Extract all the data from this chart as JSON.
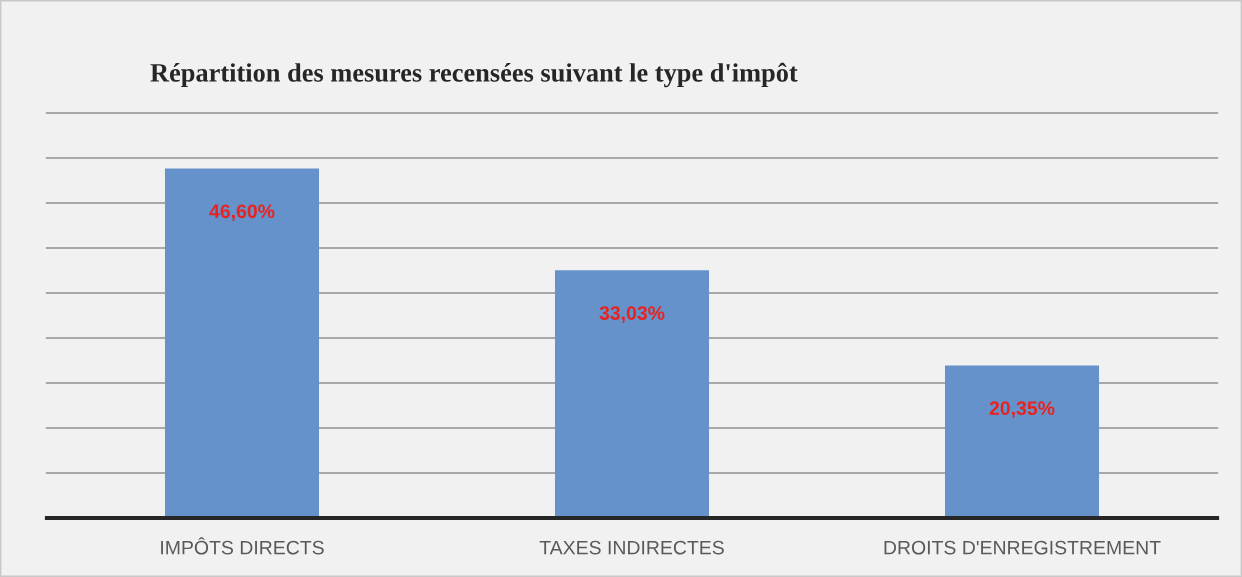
{
  "chart_data": {
    "type": "bar",
    "title": "Répartition des mesures recensées suivant le type d'impôt",
    "categories": [
      "IMPÔTS DIRECTS",
      "TAXES INDIRECTES",
      "DROITS D'ENREGISTREMENT"
    ],
    "values": [
      46.6,
      33.03,
      20.35
    ],
    "value_labels": [
      "46,60%",
      "33,03%",
      "20,35%"
    ],
    "color": "#6592cb",
    "ylim": [
      0,
      54
    ],
    "yticks": [
      {
        "value": 0,
        "label": null
      },
      {
        "value": 6,
        "label": null
      },
      {
        "value": 12,
        "label": null
      },
      {
        "value": 18,
        "label": null
      },
      {
        "value": 24,
        "label": null
      },
      {
        "value": 30,
        "label": null
      },
      {
        "value": 36,
        "label": null
      },
      {
        "value": 42,
        "label": null
      },
      {
        "value": 48,
        "label": null
      },
      {
        "value": 54,
        "label": null
      }
    ],
    "grid": "y",
    "tick_labels": "x"
  }
}
